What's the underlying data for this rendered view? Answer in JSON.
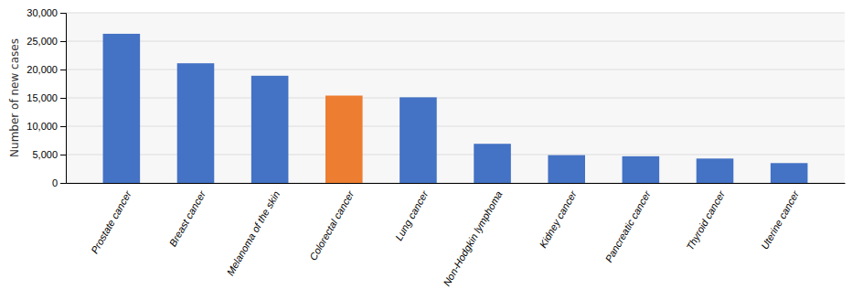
{
  "chart_data": {
    "type": "bar",
    "categories": [
      "Prostate cancer",
      "Breast cancer",
      "Melanoma of the skin",
      "Colorectal cancer",
      "Lung cancer",
      "Non-Hodgkin lymphoma",
      "Kidney cancer",
      "Pancreatic cancer",
      "Thyroid cancer",
      "Uterine cancer"
    ],
    "values": [
      26300,
      21100,
      18900,
      15400,
      15100,
      6900,
      4900,
      4700,
      4300,
      3500
    ],
    "colors": [
      "#4472C4",
      "#4472C4",
      "#4472C4",
      "#ED7D31",
      "#4472C4",
      "#4472C4",
      "#4472C4",
      "#4472C4",
      "#4472C4",
      "#4472C4"
    ],
    "ylabel": "Number of new cases",
    "ylim": [
      0,
      30000
    ],
    "yticks": [
      0,
      {
        "value": 5000,
        "label": "5,000"
      },
      {
        "value": 10000,
        "label": "10,000"
      },
      {
        "value": 15000,
        "label": "15,000"
      },
      {
        "value": 20000,
        "label": "20,000"
      },
      {
        "value": 25000,
        "label": "25,000"
      },
      {
        "value": 30000,
        "label": "30,000"
      }
    ],
    "grid": true
  }
}
